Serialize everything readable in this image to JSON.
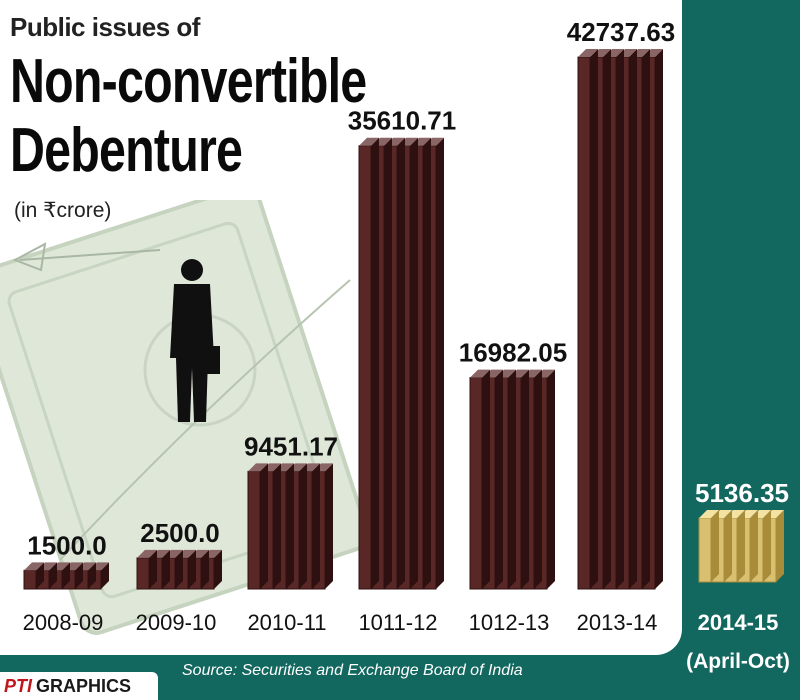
{
  "title": {
    "line_small": "Public issues of",
    "line_big_1": "Non-convertible",
    "line_big_2": "Debenture",
    "unit": "(in ₹crore)"
  },
  "source": "Source: Securities and Exchange Board of India",
  "logo": {
    "mark": "PTI",
    "word": "GRAPHICS",
    "colors": {
      "mark": "#c0161b",
      "word": "#1a1a1a"
    }
  },
  "colors": {
    "background": "#12675f",
    "panel": "#ffffff",
    "bar_front": "#5a2727",
    "bar_side": "#2e1010",
    "bar_top": "#8a6565",
    "highlight_front": "#d8c070",
    "highlight_side": "#a88c3a",
    "highlight_top": "#f4e2a0"
  },
  "chart_data": {
    "type": "bar",
    "categories": [
      "2008-09",
      "2009-10",
      "2010-11",
      "1011-12",
      "1012-13",
      "2013-14",
      "2014-15"
    ],
    "category_sublabels": [
      "",
      "",
      "",
      "",
      "",
      "",
      "(April-Oct)"
    ],
    "values": [
      1500.0,
      2500.0,
      9451.17,
      35610.71,
      16982.05,
      42737.63,
      5136.35
    ],
    "value_labels": [
      "1500.0",
      "2500.0",
      "9451.17",
      "35610.71",
      "16982.05",
      "42737.63",
      "5136.35"
    ],
    "highlighted_index": 6,
    "title": "Public issues of Non-convertible Debenture",
    "unit": "in ₹crore",
    "xlabel": "",
    "ylabel": "",
    "grid": false,
    "legend": "none"
  }
}
